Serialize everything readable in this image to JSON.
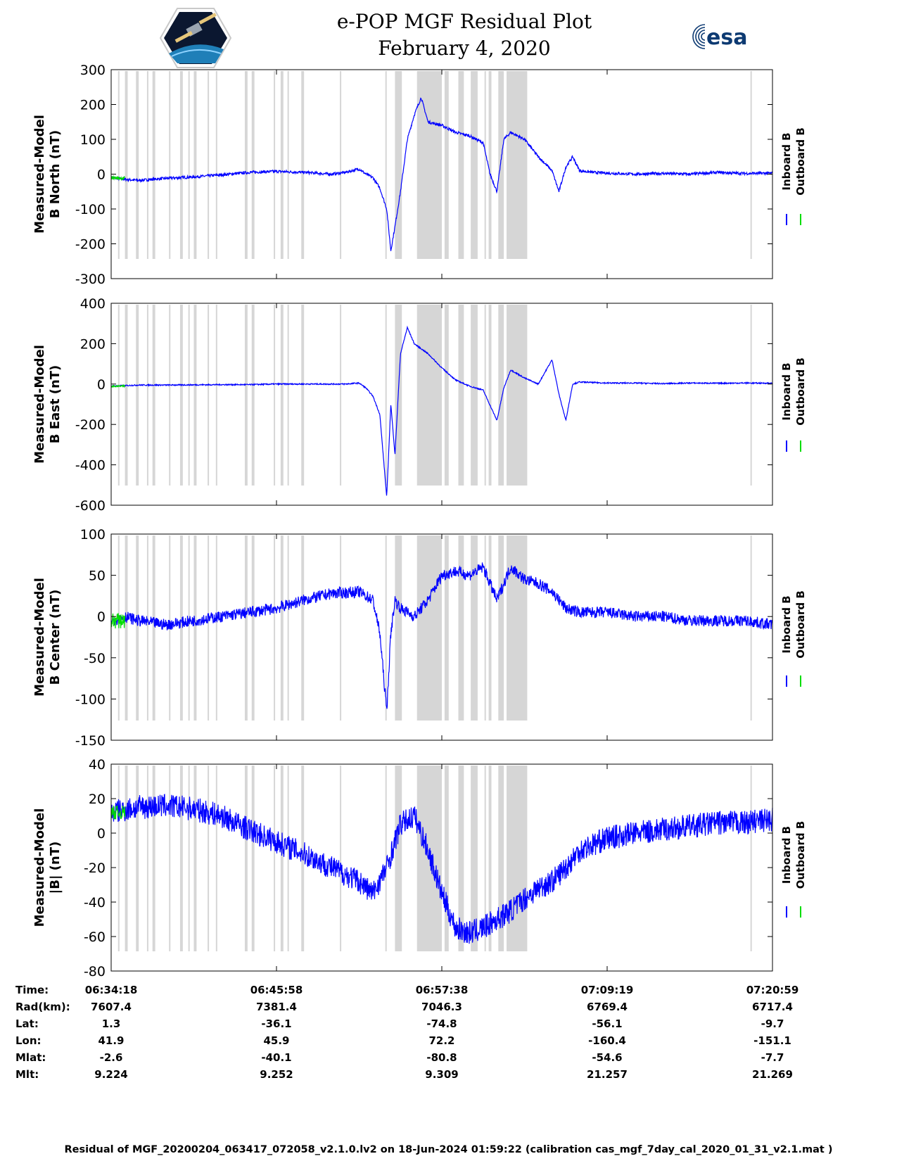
{
  "header": {
    "title_line1": "e-POP MGF Residual Plot",
    "title_line2": "February 4, 2020",
    "logo_left": "cassiope-mission-logo",
    "logo_right_text": "esa"
  },
  "colors": {
    "inboard": "#0000ff",
    "outboard": "#00dd00",
    "gap_band": "#d6d6d6"
  },
  "chart_data": [
    {
      "type": "line",
      "ylabel": "Measured-Model\nB North (nT)",
      "ylim": [
        -300,
        300
      ],
      "yticks": [
        -300,
        -200,
        -100,
        0,
        100,
        200,
        300
      ],
      "legend": [
        "Inboard B",
        "Outboard B"
      ],
      "legend_placement": "right",
      "grid": false,
      "series": [
        {
          "name": "Inboard B",
          "x": [
            0,
            1,
            2,
            4,
            6,
            8,
            10,
            12,
            14,
            16,
            17,
            18,
            18.5,
            19,
            19.5,
            20,
            20.3,
            20.6,
            21,
            21.5,
            22,
            22.5,
            23,
            24,
            25,
            26,
            27,
            27.5,
            28,
            28.5,
            29,
            30,
            31,
            32,
            32.5,
            33,
            33.5,
            34,
            35,
            36,
            38,
            40,
            42,
            44,
            46,
            48
          ],
          "values": [
            -10,
            -15,
            -18,
            -12,
            -8,
            -2,
            5,
            8,
            5,
            0,
            5,
            15,
            0,
            -10,
            -40,
            -100,
            -220,
            -150,
            -50,
            100,
            170,
            220,
            150,
            140,
            120,
            110,
            90,
            0,
            -50,
            100,
            120,
            100,
            50,
            10,
            -50,
            20,
            50,
            10,
            5,
            3,
            0,
            2,
            0,
            5,
            2,
            3
          ],
          "noise": 4
        },
        {
          "name": "Outboard B",
          "x": [
            0,
            1
          ],
          "values": [
            -10,
            -12
          ],
          "noise": 5
        }
      ]
    },
    {
      "type": "line",
      "ylabel": "Measured-Model\nB East (nT)",
      "ylim": [
        -600,
        400
      ],
      "yticks": [
        -600,
        -400,
        -200,
        0,
        200,
        400
      ],
      "legend": [
        "Inboard B",
        "Outboard B"
      ],
      "legend_placement": "right",
      "grid": false,
      "series": [
        {
          "name": "Inboard B",
          "x": [
            0,
            1,
            2,
            4,
            6,
            8,
            10,
            12,
            14,
            16,
            17,
            18,
            18.5,
            19,
            19.5,
            20,
            20.3,
            20.6,
            21,
            21.5,
            22,
            23,
            24,
            25,
            26,
            27,
            28,
            28.5,
            29,
            30,
            31,
            32,
            32.5,
            33,
            33.5,
            34,
            36,
            38,
            40,
            42,
            44,
            46,
            48
          ],
          "values": [
            -10,
            -8,
            -5,
            -5,
            -4,
            -3,
            -3,
            0,
            0,
            0,
            0,
            5,
            -20,
            -60,
            -150,
            -560,
            -100,
            -350,
            150,
            280,
            200,
            150,
            80,
            20,
            -10,
            -30,
            -180,
            -20,
            70,
            30,
            0,
            120,
            -50,
            -180,
            0,
            10,
            5,
            5,
            2,
            5,
            4,
            5,
            4
          ],
          "noise": 3
        },
        {
          "name": "Outboard B",
          "x": [
            0,
            1
          ],
          "values": [
            -12,
            -10
          ],
          "noise": 4
        }
      ]
    },
    {
      "type": "line",
      "ylabel": "Measured-Model\nB Center (nT)",
      "ylim": [
        -150,
        100
      ],
      "yticks": [
        -150,
        -100,
        -50,
        0,
        50,
        100
      ],
      "legend": [
        "Inboard B",
        "Outboard B"
      ],
      "legend_placement": "right",
      "grid": false,
      "series": [
        {
          "name": "Inboard B",
          "x": [
            0,
            1,
            2,
            4,
            6,
            8,
            10,
            12,
            14,
            16,
            18,
            19,
            19.5,
            20,
            20.3,
            20.6,
            21,
            22,
            23,
            24,
            25,
            26,
            27,
            28,
            29,
            30,
            31,
            32,
            33,
            34,
            36,
            38,
            40,
            42,
            44,
            46,
            48
          ],
          "values": [
            -5,
            0,
            -5,
            -10,
            -5,
            0,
            5,
            10,
            20,
            28,
            30,
            20,
            -20,
            -115,
            -20,
            20,
            10,
            0,
            20,
            50,
            55,
            50,
            60,
            20,
            60,
            45,
            40,
            30,
            10,
            5,
            5,
            0,
            0,
            -5,
            -5,
            -5,
            -10
          ],
          "noise": 7
        },
        {
          "name": "Outboard B",
          "x": [
            0,
            1
          ],
          "values": [
            -5,
            -5
          ],
          "noise": 10
        }
      ]
    },
    {
      "type": "line",
      "ylabel": "Measured-Model\n|B| (nT)",
      "ylim": [
        -80,
        40
      ],
      "yticks": [
        -80,
        -60,
        -40,
        -20,
        0,
        20,
        40
      ],
      "legend": [
        "Inboard B",
        "Outboard B"
      ],
      "legend_placement": "right",
      "grid": false,
      "series": [
        {
          "name": "Inboard B",
          "x": [
            0,
            2,
            4,
            6,
            8,
            10,
            12,
            14,
            16,
            18,
            19,
            20,
            21,
            22,
            23,
            24,
            25,
            26,
            27,
            28,
            29,
            30,
            31,
            32,
            33,
            34,
            36,
            38,
            40,
            42,
            44,
            46,
            48
          ],
          "values": [
            12,
            15,
            16,
            14,
            10,
            2,
            -5,
            -12,
            -20,
            -28,
            -35,
            -20,
            5,
            10,
            -10,
            -35,
            -55,
            -58,
            -55,
            -50,
            -45,
            -38,
            -32,
            -28,
            -20,
            -10,
            -3,
            0,
            2,
            4,
            6,
            6,
            8
          ],
          "noise": 7
        },
        {
          "name": "Outboard B",
          "x": [
            0,
            1
          ],
          "values": [
            12,
            12
          ],
          "noise": 4
        }
      ]
    }
  ],
  "x_axis": {
    "min": 0,
    "max": 48,
    "ticks": [
      0,
      12,
      24,
      36,
      48
    ]
  },
  "gap_bands": [
    [
      0.5,
      0.6
    ],
    [
      1.0,
      1.2
    ],
    [
      1.8,
      2.0
    ],
    [
      2.6,
      2.7
    ],
    [
      3.0,
      3.2
    ],
    [
      4.2,
      4.3
    ],
    [
      5.0,
      5.2
    ],
    [
      5.6,
      5.7
    ],
    [
      6.0,
      6.2
    ],
    [
      7.0,
      7.1
    ],
    [
      7.6,
      7.7
    ],
    [
      9.7,
      9.9
    ],
    [
      10.2,
      10.4
    ],
    [
      11.8,
      11.9
    ],
    [
      12.3,
      12.5
    ],
    [
      12.8,
      12.9
    ],
    [
      13.8,
      14.0
    ],
    [
      16.6,
      16.7
    ],
    [
      19.9,
      20.0
    ],
    [
      20.6,
      21.1
    ],
    [
      22.2,
      24.0
    ],
    [
      24.2,
      24.5
    ],
    [
      25.2,
      25.6
    ],
    [
      26.1,
      26.6
    ],
    [
      27.1,
      27.2
    ],
    [
      27.4,
      27.6
    ],
    [
      28.1,
      28.5
    ],
    [
      28.7,
      30.2
    ],
    [
      46.4,
      46.5
    ]
  ],
  "footer": {
    "row_labels": [
      "Time:",
      "Rad(km):",
      "Lat:",
      "Lon:",
      "Mlat:",
      "Mlt:"
    ],
    "columns": [
      [
        "06:34:18",
        "7607.4",
        "1.3",
        "41.9",
        "-2.6",
        "9.224"
      ],
      [
        "06:45:58",
        "7381.4",
        "-36.1",
        "45.9",
        "-40.1",
        "9.252"
      ],
      [
        "06:57:38",
        "7046.3",
        "-74.8",
        "72.2",
        "-80.8",
        "9.309"
      ],
      [
        "07:09:19",
        "6769.4",
        "-56.1",
        "-160.4",
        "-54.6",
        "21.257"
      ],
      [
        "07:20:59",
        "6717.4",
        "-9.7",
        "-151.1",
        "-7.7",
        "21.269"
      ]
    ],
    "caption": "Residual of MGF_20200204_063417_072058_v2.1.0.lv2 on 18-Jun-2024 01:59:22 (calibration cas_mgf_7day_cal_2020_01_31_v2.1.mat )"
  }
}
